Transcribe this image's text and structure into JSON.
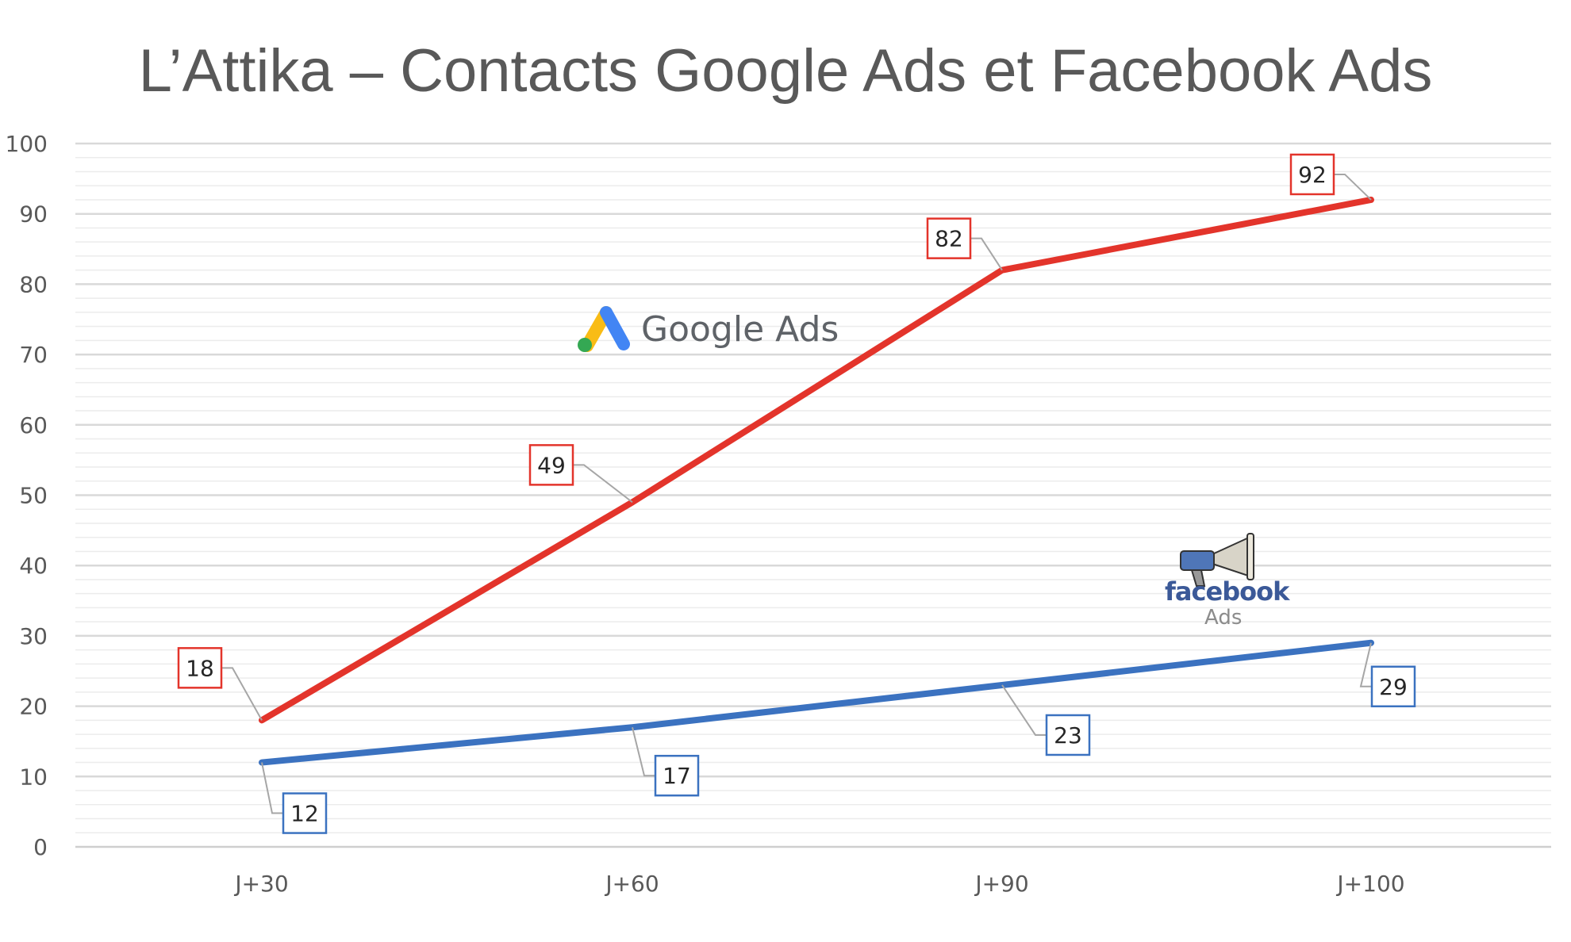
{
  "chart_data": {
    "type": "line",
    "title": "L’Attika – Contacts Google Ads et Facebook Ads",
    "categories": [
      "J+30",
      "J+60",
      "J+90",
      "J+100"
    ],
    "ylim": [
      0,
      100
    ],
    "yticks": [
      "0",
      "10",
      "20",
      "30",
      "40",
      "50",
      "60",
      "70",
      "80",
      "90",
      "100"
    ],
    "grid": true,
    "minor_grid": true,
    "series": [
      {
        "key": "google",
        "color": "#e3342b",
        "values": [
          18,
          49,
          82,
          92
        ]
      },
      {
        "key": "facebook",
        "color": "#3b72c0",
        "values": [
          12,
          17,
          23,
          29
        ]
      }
    ]
  },
  "logos": {
    "google_ads": {
      "text": "Google Ads",
      "icon": "google-ads-logo-icon",
      "colors": [
        "#f9bc15",
        "#4285f4",
        "#34a853"
      ]
    },
    "facebook_ads": {
      "brand": "facebook",
      "sub": "Ads",
      "icon": "megaphone-icon",
      "color": "#3b5998"
    }
  }
}
